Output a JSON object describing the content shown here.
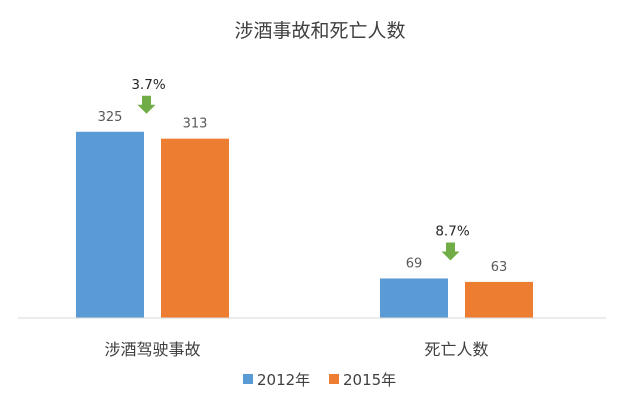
{
  "chart_data": {
    "type": "bar",
    "title": "涉酒事故和死亡人数",
    "categories": [
      "涉酒驾驶事故",
      "死亡人数"
    ],
    "series": [
      {
        "name": "2012年",
        "values": [
          325,
          69
        ],
        "color": "#5B9BD5"
      },
      {
        "name": "2015年",
        "values": [
          313,
          63
        ],
        "color": "#ED7D31"
      }
    ],
    "annotations": [
      {
        "category": "涉酒驾驶事故",
        "text": "3.7%",
        "icon": "down-arrow-icon",
        "color": "#70AD47"
      },
      {
        "category": "死亡人数",
        "text": "8.7%",
        "icon": "down-arrow-icon",
        "color": "#70AD47"
      }
    ],
    "ylim": [
      0,
      360
    ],
    "grid": false,
    "legend": "bottom",
    "xlabel": "",
    "ylabel": ""
  }
}
